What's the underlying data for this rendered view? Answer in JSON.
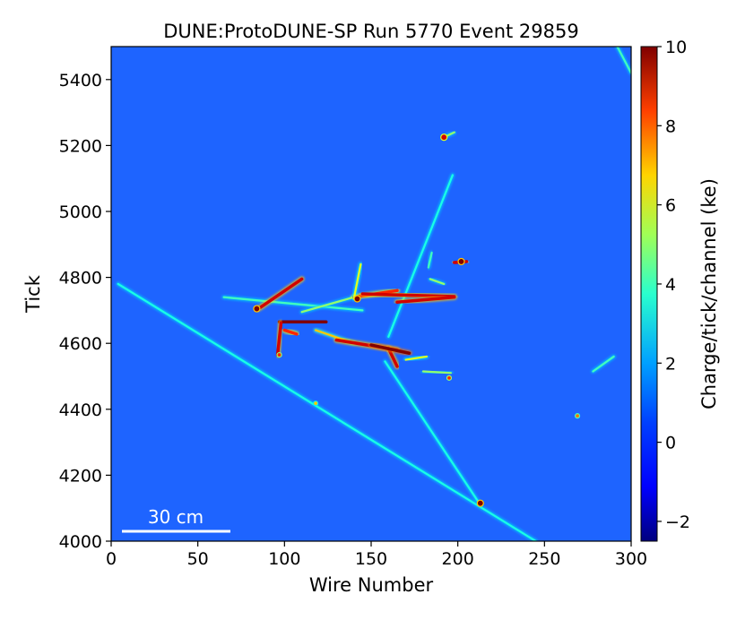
{
  "chart_data": {
    "type": "heatmap",
    "title": "DUNE:ProtoDUNE-SP Run 5770 Event 29859",
    "xlabel": "Wire Number",
    "ylabel": "Tick",
    "xlim": [
      0,
      300
    ],
    "ylim": [
      4000,
      5500
    ],
    "xticks": [
      "0",
      "50",
      "100",
      "150",
      "200",
      "250",
      "300"
    ],
    "yticks": [
      "4000",
      "4200",
      "4400",
      "4600",
      "4800",
      "5000",
      "5200",
      "5400"
    ],
    "xtick_values": [
      0,
      50,
      100,
      150,
      200,
      250,
      300
    ],
    "ytick_values": [
      4000,
      4200,
      4400,
      4600,
      4800,
      5000,
      5200,
      5400
    ],
    "colorbar": {
      "label": "Charge/tick/channel (ke)",
      "range": [
        -2.5,
        10
      ],
      "ticks": [
        "−2",
        "0",
        "2",
        "4",
        "6",
        "8",
        "10"
      ],
      "tick_values": [
        -2,
        0,
        2,
        4,
        6,
        8,
        10
      ],
      "colormap": "jet"
    },
    "scale_bar": {
      "label": "30 cm"
    },
    "background_color": "#1e64ff",
    "tracks": [
      {
        "x1": 4,
        "y1": 4780,
        "x2": 245,
        "y2": 4000,
        "charge": 2.5
      },
      {
        "x1": 158,
        "y1": 4545,
        "x2": 213,
        "y2": 4110,
        "charge": 2.5
      },
      {
        "x1": 160,
        "y1": 4620,
        "x2": 197,
        "y2": 5110,
        "charge": 2.5
      },
      {
        "x1": 65,
        "y1": 4740,
        "x2": 145,
        "y2": 4700,
        "charge": 3
      },
      {
        "x1": 110,
        "y1": 4695,
        "x2": 140,
        "y2": 4740,
        "charge": 4
      },
      {
        "x1": 140,
        "y1": 4740,
        "x2": 165,
        "y2": 4760,
        "charge": 8
      },
      {
        "x1": 145,
        "y1": 4750,
        "x2": 198,
        "y2": 4742,
        "charge": 9
      },
      {
        "x1": 165,
        "y1": 4725,
        "x2": 198,
        "y2": 4740,
        "charge": 9
      },
      {
        "x1": 85,
        "y1": 4705,
        "x2": 110,
        "y2": 4795,
        "charge": 9
      },
      {
        "x1": 97,
        "y1": 4665,
        "x2": 124,
        "y2": 4665,
        "charge": 10
      },
      {
        "x1": 98,
        "y1": 4662,
        "x2": 96,
        "y2": 4565,
        "charge": 9
      },
      {
        "x1": 100,
        "y1": 4640,
        "x2": 107,
        "y2": 4628,
        "charge": 8
      },
      {
        "x1": 118,
        "y1": 4640,
        "x2": 140,
        "y2": 4600,
        "charge": 6
      },
      {
        "x1": 130,
        "y1": 4610,
        "x2": 165,
        "y2": 4580,
        "charge": 9
      },
      {
        "x1": 160,
        "y1": 4585,
        "x2": 165,
        "y2": 4530,
        "charge": 9
      },
      {
        "x1": 150,
        "y1": 4595,
        "x2": 172,
        "y2": 4570,
        "charge": 10
      },
      {
        "x1": 140,
        "y1": 4735,
        "x2": 144,
        "y2": 4840,
        "charge": 5
      },
      {
        "x1": 170,
        "y1": 4550,
        "x2": 182,
        "y2": 4560,
        "charge": 5
      },
      {
        "x1": 180,
        "y1": 4515,
        "x2": 196,
        "y2": 4510,
        "charge": 4
      },
      {
        "x1": 278,
        "y1": 4515,
        "x2": 290,
        "y2": 4560,
        "charge": 3
      },
      {
        "x1": 292,
        "y1": 5500,
        "x2": 300,
        "y2": 5420,
        "charge": 3
      },
      {
        "x1": 198,
        "y1": 4845,
        "x2": 205,
        "y2": 4848,
        "charge": 9
      },
      {
        "x1": 192,
        "y1": 5225,
        "x2": 198,
        "y2": 5240,
        "charge": 4
      },
      {
        "x1": 184,
        "y1": 4795,
        "x2": 192,
        "y2": 4780,
        "charge": 4
      },
      {
        "x1": 183,
        "y1": 4830,
        "x2": 185,
        "y2": 4875,
        "charge": 3
      }
    ],
    "blobs": [
      {
        "x": 84,
        "y": 4705,
        "charge": 10
      },
      {
        "x": 213,
        "y": 4115,
        "charge": 10
      },
      {
        "x": 142,
        "y": 4735,
        "charge": 10
      },
      {
        "x": 202,
        "y": 4848,
        "charge": 10
      },
      {
        "x": 195,
        "y": 4495,
        "charge": 8
      },
      {
        "x": 269,
        "y": 4380,
        "charge": 7
      },
      {
        "x": 192,
        "y": 5225,
        "charge": 9
      },
      {
        "x": 118,
        "y": 4418,
        "charge": 6
      },
      {
        "x": 97,
        "y": 4565,
        "charge": 8
      }
    ]
  }
}
